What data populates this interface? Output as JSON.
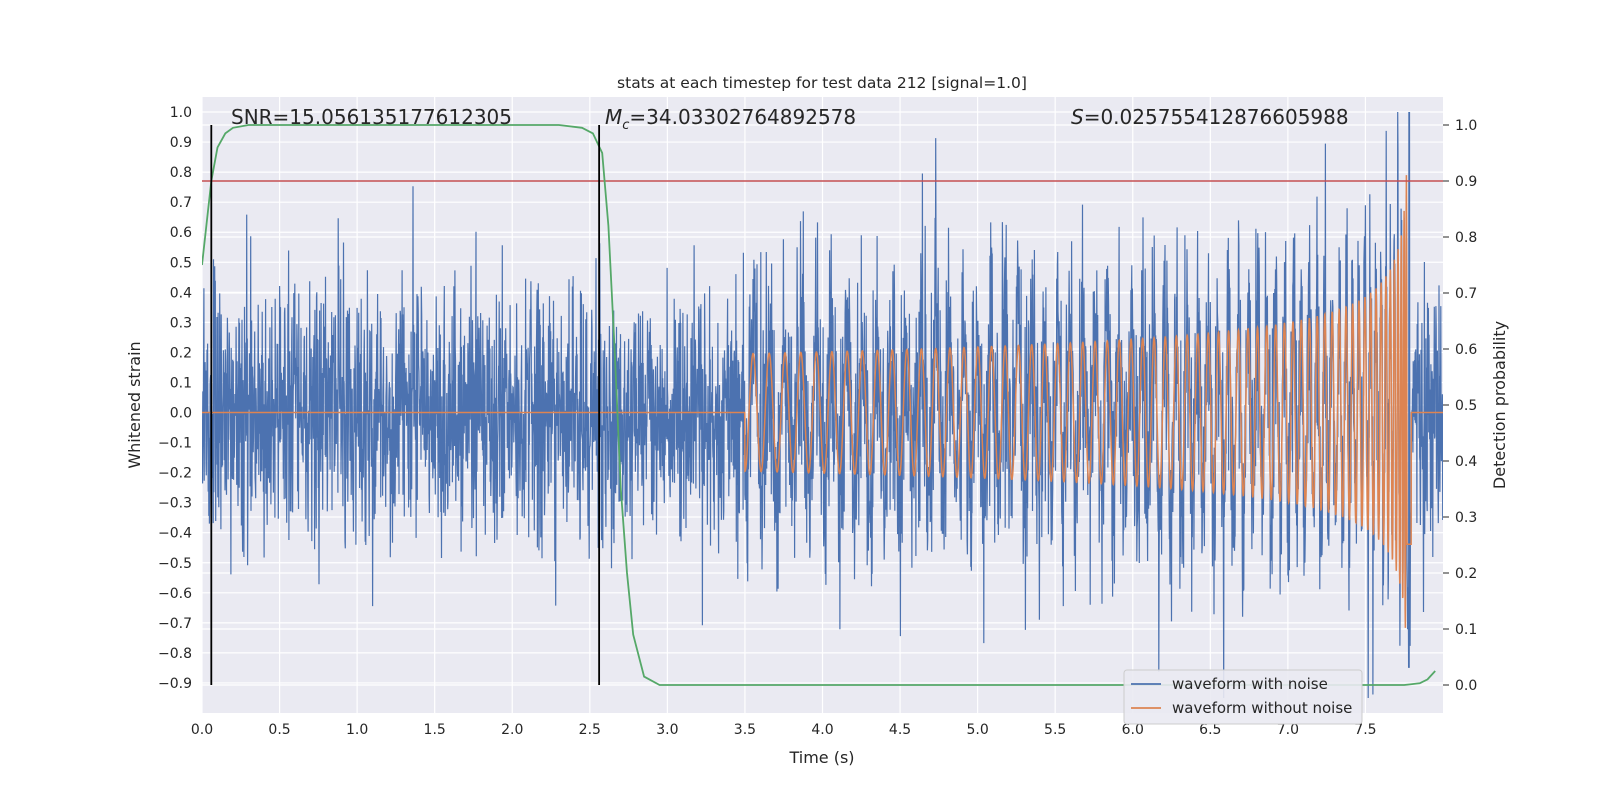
{
  "chart_data": {
    "type": "line",
    "title": "stats at each timestep for test data 212 [signal=1.0]",
    "xlabel": "Time (s)",
    "ylabel": "Whitened strain",
    "y2label": "Detection probability",
    "xlim": [
      0.0,
      8.0
    ],
    "ylim": [
      -1.0,
      1.05
    ],
    "y2lim": [
      -0.05,
      1.05
    ],
    "x_ticks": [
      "0.0",
      "0.5",
      "1.0",
      "1.5",
      "2.0",
      "2.5",
      "3.0",
      "3.5",
      "4.0",
      "4.5",
      "5.0",
      "5.5",
      "6.0",
      "6.5",
      "7.0",
      "7.5"
    ],
    "y_ticks": [
      "1.0",
      "0.9",
      "0.8",
      "0.7",
      "0.6",
      "0.5",
      "0.4",
      "0.3",
      "0.2",
      "0.1",
      "0.0",
      "−0.1",
      "−0.2",
      "−0.3",
      "−0.4",
      "−0.5",
      "−0.6",
      "−0.7",
      "−0.8",
      "−0.9"
    ],
    "y2_ticks": [
      "1.0",
      "0.9",
      "0.8",
      "0.7",
      "0.6",
      "0.5",
      "0.4",
      "0.3",
      "0.2",
      "0.1",
      "0.0"
    ],
    "grid": true,
    "legend_position": "lower right",
    "annotations": {
      "snr": "SNR=15.056135177612305",
      "mc_symbol": "M",
      "mc_sub": "c",
      "mc_value": "=34.03302764892578",
      "s_symbol": "S",
      "s_value": "=0.025755412876605988"
    },
    "vlines_x": [
      0.06,
      2.56
    ],
    "threshold_y2": 0.9,
    "series": [
      {
        "name": "waveform with noise",
        "color": "#4c72b0",
        "noise_scale": 0.2,
        "merger_time": 7.78,
        "merger_peak": 1.0,
        "merger_trough": -0.85
      },
      {
        "name": "waveform without noise",
        "color": "#dd8452",
        "chirp_start": 3.5,
        "merger_time": 7.78,
        "peak": 0.85
      },
      {
        "color": "#55a868",
        "axis": "right",
        "x": [
          0.0,
          0.02,
          0.06,
          0.1,
          0.15,
          0.2,
          0.3,
          0.4,
          0.5,
          1.0,
          1.5,
          2.0,
          2.3,
          2.45,
          2.52,
          2.58,
          2.62,
          2.66,
          2.7,
          2.74,
          2.78,
          2.85,
          2.95,
          3.1,
          4.0,
          5.0,
          6.0,
          7.0,
          7.6,
          7.75,
          7.85,
          7.9,
          7.95
        ],
        "values": [
          0.75,
          0.8,
          0.9,
          0.96,
          0.985,
          0.995,
          1.0,
          1.0,
          1.0,
          1.0,
          1.0,
          1.0,
          1.0,
          0.995,
          0.985,
          0.95,
          0.82,
          0.6,
          0.35,
          0.2,
          0.09,
          0.015,
          0.0,
          0.0,
          0.0,
          0.0,
          0.0,
          0.0,
          0.0,
          0.0,
          0.003,
          0.01,
          0.025
        ]
      },
      {
        "color": "#c44e52",
        "axis": "right",
        "x": [
          0.0,
          8.0
        ],
        "values": [
          0.9,
          0.9
        ]
      }
    ],
    "legend": [
      {
        "label": "waveform with noise",
        "color": "#4c72b0"
      },
      {
        "label": "waveform without noise",
        "color": "#dd8452"
      }
    ]
  }
}
